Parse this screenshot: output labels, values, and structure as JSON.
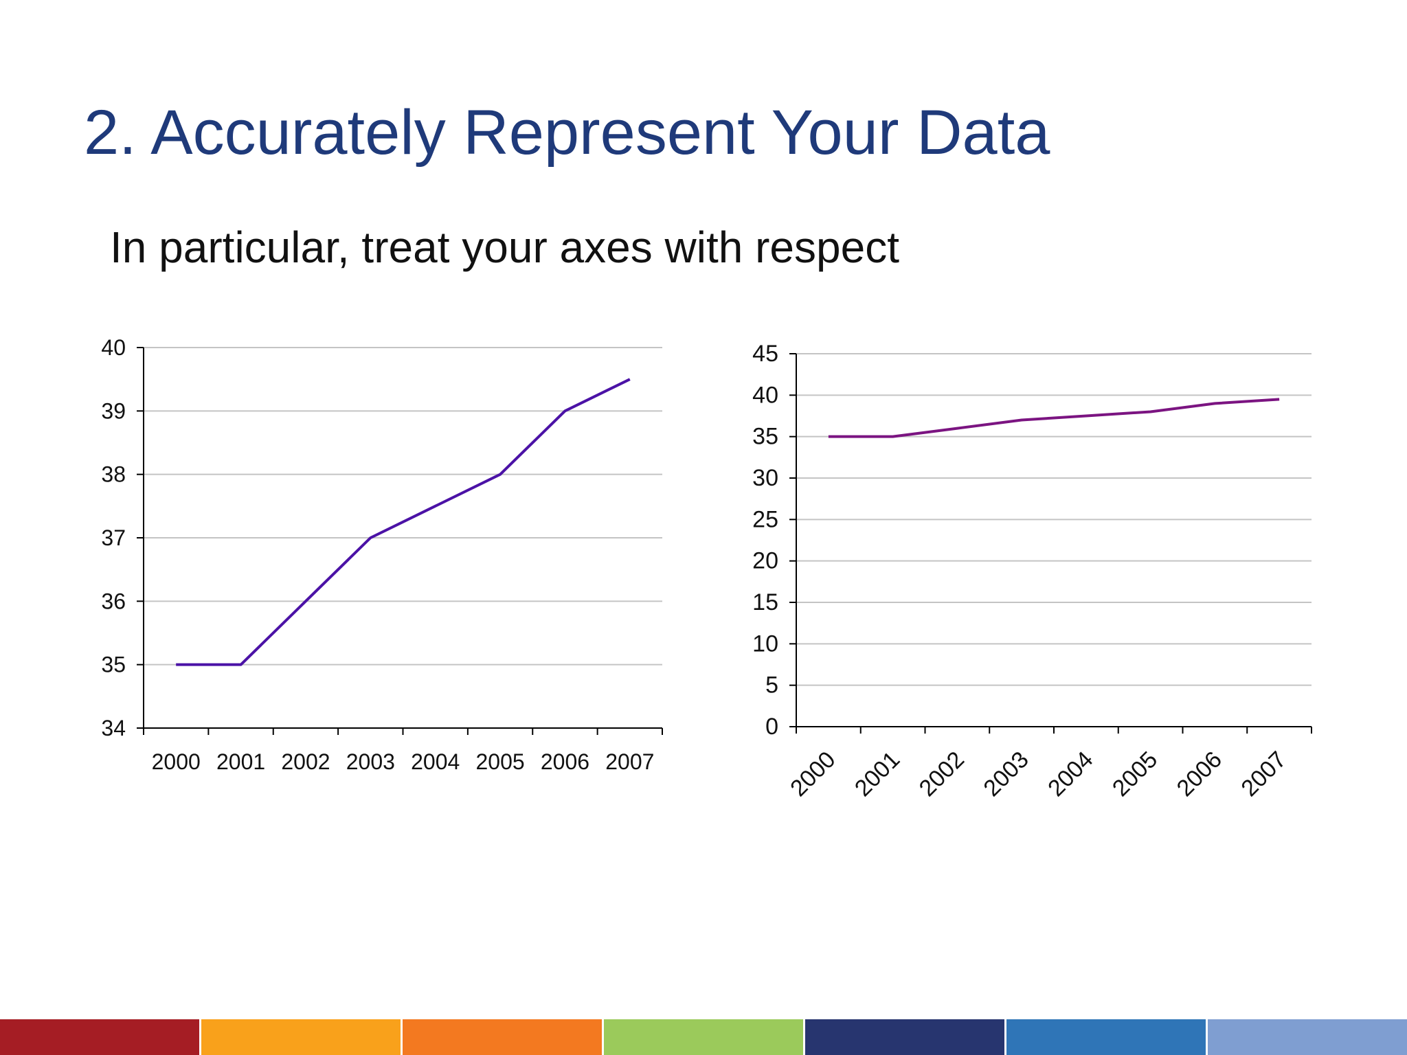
{
  "slide": {
    "title": "2. Accurately Represent Your Data",
    "subtitle": "In particular, treat your axes with respect"
  },
  "footer_colors": [
    "#a51d24",
    "#f9a11b",
    "#f37920",
    "#9bca5b",
    "#27356f",
    "#2f75b7",
    "#7f9ed1"
  ],
  "chart_data": [
    {
      "type": "line",
      "x": [
        "2000",
        "2001",
        "2002",
        "2003",
        "2004",
        "2005",
        "2006",
        "2007"
      ],
      "series": [
        {
          "values": [
            35,
            35,
            36,
            37,
            37.5,
            38,
            39,
            39.5
          ],
          "color": "#4b12a6"
        }
      ],
      "ylim": [
        34,
        40
      ],
      "yticks": [
        "34",
        "35",
        "36",
        "37",
        "38",
        "39",
        "40"
      ],
      "xlabel": "",
      "ylabel": "",
      "title": "",
      "grid": true,
      "x_tick_rotation": 0
    },
    {
      "type": "line",
      "x": [
        "2000",
        "2001",
        "2002",
        "2003",
        "2004",
        "2005",
        "2006",
        "2007"
      ],
      "series": [
        {
          "values": [
            35,
            35,
            36,
            37,
            37.5,
            38,
            39,
            39.5
          ],
          "color": "#7b1481"
        }
      ],
      "ylim": [
        0,
        45
      ],
      "yticks": [
        "0",
        "5",
        "10",
        "15",
        "20",
        "25",
        "30",
        "35",
        "40",
        "45"
      ],
      "xlabel": "",
      "ylabel": "",
      "title": "",
      "grid": true,
      "x_tick_rotation": -45
    }
  ]
}
